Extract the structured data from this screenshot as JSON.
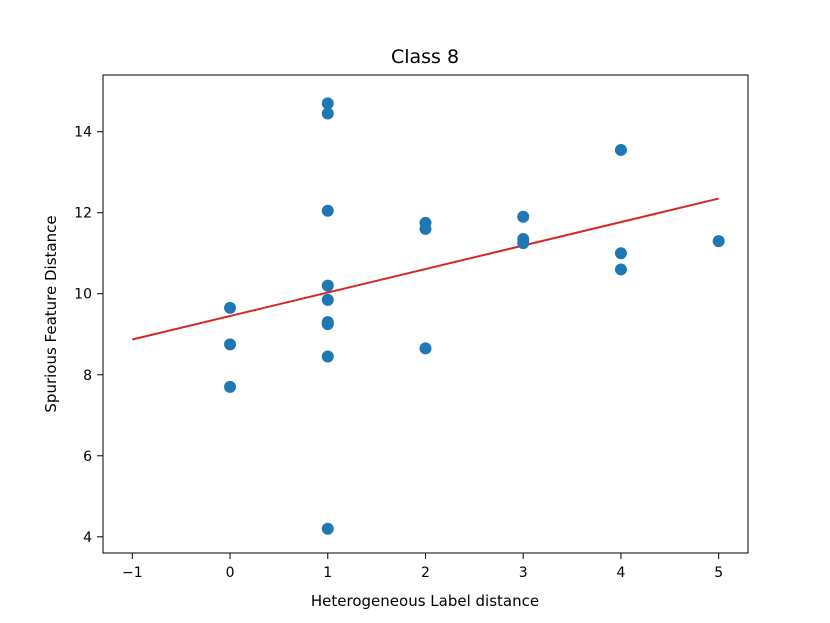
{
  "chart_data": {
    "type": "scatter",
    "title": "Class 8",
    "xlabel": "Heterogeneous Label distance",
    "ylabel": "Spurious Feature Distance",
    "xlim": [
      -1.3,
      5.3
    ],
    "ylim": [
      3.6,
      15.4
    ],
    "xticks": [
      -1,
      0,
      1,
      2,
      3,
      4,
      5
    ],
    "xtick_labels": [
      "−1",
      "0",
      "1",
      "2",
      "3",
      "4",
      "5"
    ],
    "yticks": [
      4,
      6,
      8,
      10,
      12,
      14
    ],
    "ytick_labels": [
      "4",
      "6",
      "8",
      "10",
      "12",
      "14"
    ],
    "grid": false,
    "points": {
      "x": [
        0,
        0,
        0,
        1,
        1,
        1,
        1,
        1,
        1,
        1,
        1,
        1,
        2,
        2,
        2,
        3,
        3,
        3,
        4,
        4,
        4,
        5
      ],
      "y": [
        9.65,
        8.75,
        7.7,
        14.7,
        14.45,
        12.05,
        10.2,
        9.85,
        9.3,
        9.25,
        8.45,
        4.2,
        11.75,
        11.6,
        8.65,
        11.9,
        11.35,
        11.25,
        13.55,
        11.0,
        10.6,
        11.3
      ],
      "color": "#1f77b4"
    },
    "fit_line": {
      "x": [
        -1,
        5
      ],
      "y": [
        8.87,
        12.35
      ],
      "color": "#d62728"
    }
  }
}
